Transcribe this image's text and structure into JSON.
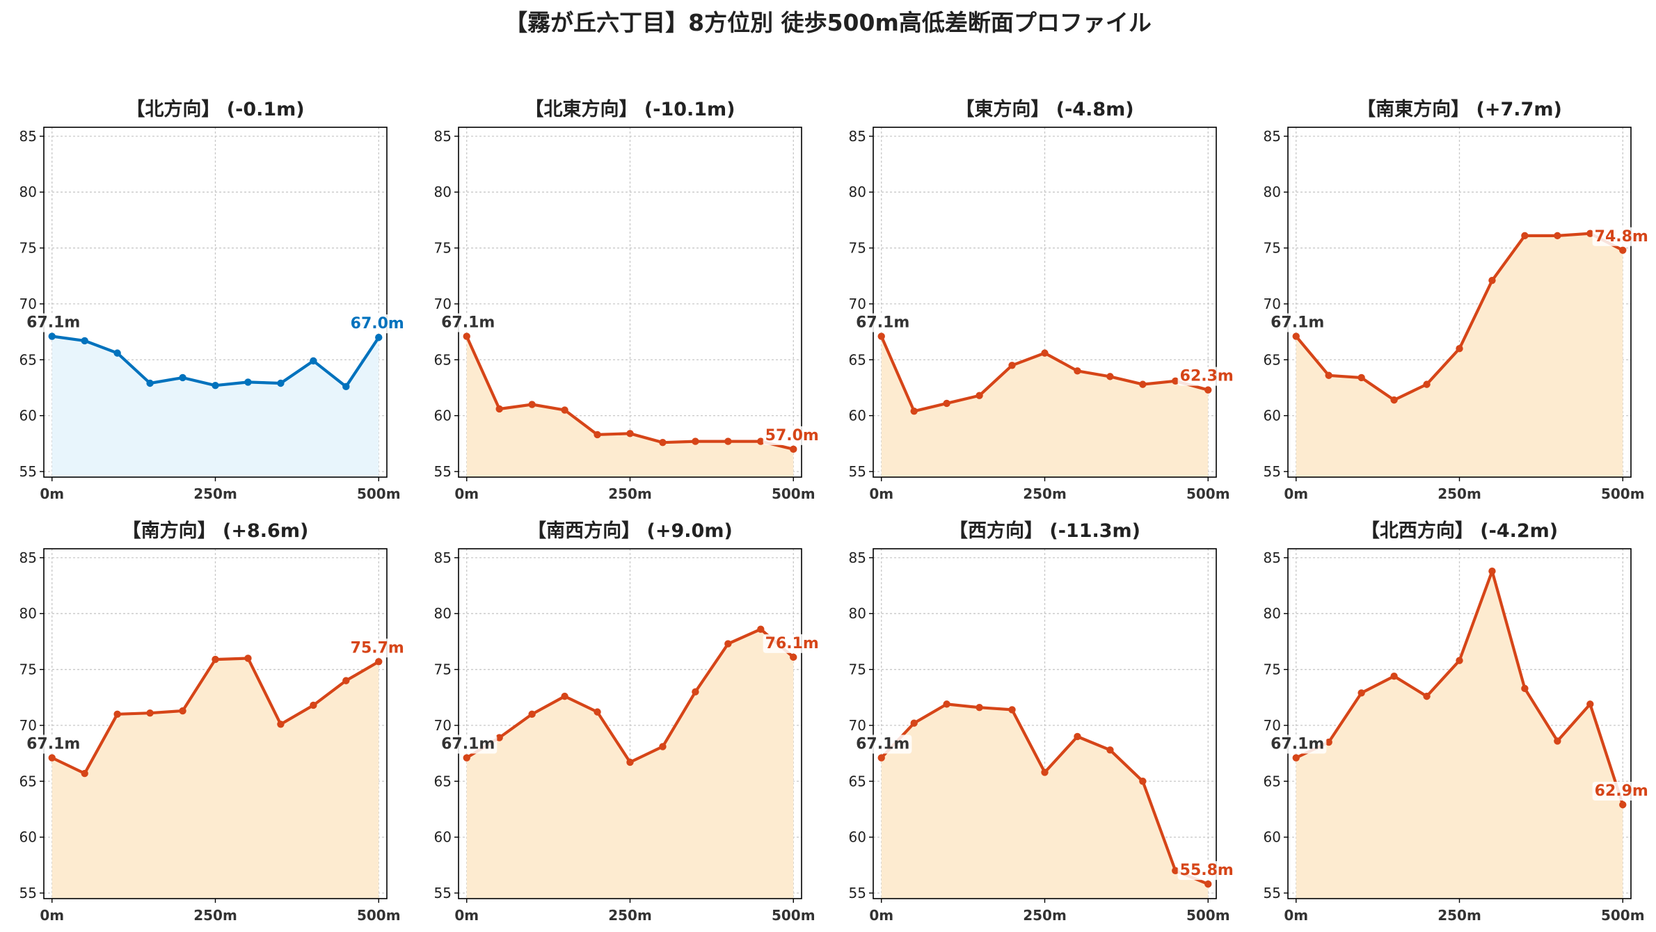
{
  "title": "【霧が丘六丁目】8方位別 徒歩500m高低差断面プロファイル",
  "colors": {
    "up_line": "#0072bd",
    "up_fill": "#e8f5fc",
    "down_line": "#d64518",
    "down_fill": "#fdebd0",
    "start_label": "#333333"
  },
  "chart_data": [
    {
      "type": "area",
      "title": "【北方向】 (-0.1m)",
      "x": [
        0,
        50,
        100,
        150,
        200,
        250,
        300,
        350,
        400,
        450,
        500
      ],
      "xticks": [
        0,
        250,
        500
      ],
      "xtick_labels": [
        "0m",
        "250m",
        "500m"
      ],
      "yticks": [
        55,
        60,
        65,
        70,
        75,
        80,
        85
      ],
      "ylim": [
        54.5,
        85.8
      ],
      "values": [
        67.1,
        66.7,
        65.6,
        62.9,
        63.4,
        62.7,
        63.0,
        62.9,
        64.9,
        62.6,
        67.0
      ],
      "start_label": "67.1m",
      "end_label": "67.0m",
      "color_scheme": "blue",
      "grid": true
    },
    {
      "type": "area",
      "title": "【北東方向】 (-10.1m)",
      "x": [
        0,
        50,
        100,
        150,
        200,
        250,
        300,
        350,
        400,
        450,
        500
      ],
      "xticks": [
        0,
        250,
        500
      ],
      "xtick_labels": [
        "0m",
        "250m",
        "500m"
      ],
      "yticks": [
        55,
        60,
        65,
        70,
        75,
        80,
        85
      ],
      "ylim": [
        54.5,
        85.8
      ],
      "values": [
        67.1,
        60.6,
        61.0,
        60.5,
        58.3,
        58.4,
        57.6,
        57.7,
        57.7,
        57.7,
        57.0
      ],
      "start_label": "67.1m",
      "end_label": "57.0m",
      "color_scheme": "orange",
      "grid": true
    },
    {
      "type": "area",
      "title": "【東方向】 (-4.8m)",
      "x": [
        0,
        50,
        100,
        150,
        200,
        250,
        300,
        350,
        400,
        450,
        500
      ],
      "xticks": [
        0,
        250,
        500
      ],
      "xtick_labels": [
        "0m",
        "250m",
        "500m"
      ],
      "yticks": [
        55,
        60,
        65,
        70,
        75,
        80,
        85
      ],
      "ylim": [
        54.5,
        85.8
      ],
      "values": [
        67.1,
        60.4,
        61.1,
        61.8,
        64.5,
        65.6,
        64.0,
        63.5,
        62.8,
        63.1,
        62.3
      ],
      "start_label": "67.1m",
      "end_label": "62.3m",
      "color_scheme": "orange",
      "grid": true
    },
    {
      "type": "area",
      "title": "【南東方向】 (+7.7m)",
      "x": [
        0,
        50,
        100,
        150,
        200,
        250,
        300,
        350,
        400,
        450,
        500
      ],
      "xticks": [
        0,
        250,
        500
      ],
      "xtick_labels": [
        "0m",
        "250m",
        "500m"
      ],
      "yticks": [
        55,
        60,
        65,
        70,
        75,
        80,
        85
      ],
      "ylim": [
        54.5,
        85.8
      ],
      "values": [
        67.1,
        63.6,
        63.4,
        61.4,
        62.8,
        66.0,
        72.1,
        76.1,
        76.1,
        76.3,
        74.8
      ],
      "start_label": "67.1m",
      "end_label": "74.8m",
      "color_scheme": "orange",
      "grid": true
    },
    {
      "type": "area",
      "title": "【南方向】 (+8.6m)",
      "x": [
        0,
        50,
        100,
        150,
        200,
        250,
        300,
        350,
        400,
        450,
        500
      ],
      "xticks": [
        0,
        250,
        500
      ],
      "xtick_labels": [
        "0m",
        "250m",
        "500m"
      ],
      "yticks": [
        55,
        60,
        65,
        70,
        75,
        80,
        85
      ],
      "ylim": [
        54.5,
        85.8
      ],
      "values": [
        67.1,
        65.7,
        71.0,
        71.1,
        71.3,
        75.9,
        76.0,
        70.1,
        71.8,
        74.0,
        75.7
      ],
      "start_label": "67.1m",
      "end_label": "75.7m",
      "color_scheme": "orange",
      "grid": true
    },
    {
      "type": "area",
      "title": "【南西方向】 (+9.0m)",
      "x": [
        0,
        50,
        100,
        150,
        200,
        250,
        300,
        350,
        400,
        450,
        500
      ],
      "xticks": [
        0,
        250,
        500
      ],
      "xtick_labels": [
        "0m",
        "250m",
        "500m"
      ],
      "yticks": [
        55,
        60,
        65,
        70,
        75,
        80,
        85
      ],
      "ylim": [
        54.5,
        85.8
      ],
      "values": [
        67.1,
        68.9,
        71.0,
        72.6,
        71.2,
        66.7,
        68.1,
        73.0,
        77.3,
        78.6,
        76.1
      ],
      "start_label": "67.1m",
      "end_label": "76.1m",
      "color_scheme": "orange",
      "grid": true
    },
    {
      "type": "area",
      "title": "【西方向】 (-11.3m)",
      "x": [
        0,
        50,
        100,
        150,
        200,
        250,
        300,
        350,
        400,
        450,
        500
      ],
      "xticks": [
        0,
        250,
        500
      ],
      "xtick_labels": [
        "0m",
        "250m",
        "500m"
      ],
      "yticks": [
        55,
        60,
        65,
        70,
        75,
        80,
        85
      ],
      "ylim": [
        54.5,
        85.8
      ],
      "values": [
        67.1,
        70.2,
        71.9,
        71.6,
        71.4,
        65.8,
        69.0,
        67.8,
        65.0,
        57.0,
        55.8
      ],
      "start_label": "67.1m",
      "end_label": "55.8m",
      "color_scheme": "orange",
      "grid": true
    },
    {
      "type": "area",
      "title": "【北西方向】 (-4.2m)",
      "x": [
        0,
        50,
        100,
        150,
        200,
        250,
        300,
        350,
        400,
        450,
        500
      ],
      "xticks": [
        0,
        250,
        500
      ],
      "xtick_labels": [
        "0m",
        "250m",
        "500m"
      ],
      "yticks": [
        55,
        60,
        65,
        70,
        75,
        80,
        85
      ],
      "ylim": [
        54.5,
        85.8
      ],
      "values": [
        67.1,
        68.5,
        72.9,
        74.4,
        72.6,
        75.8,
        83.8,
        73.3,
        68.6,
        71.9,
        62.9
      ],
      "start_label": "67.1m",
      "end_label": "62.9m",
      "color_scheme": "orange",
      "grid": true
    }
  ]
}
